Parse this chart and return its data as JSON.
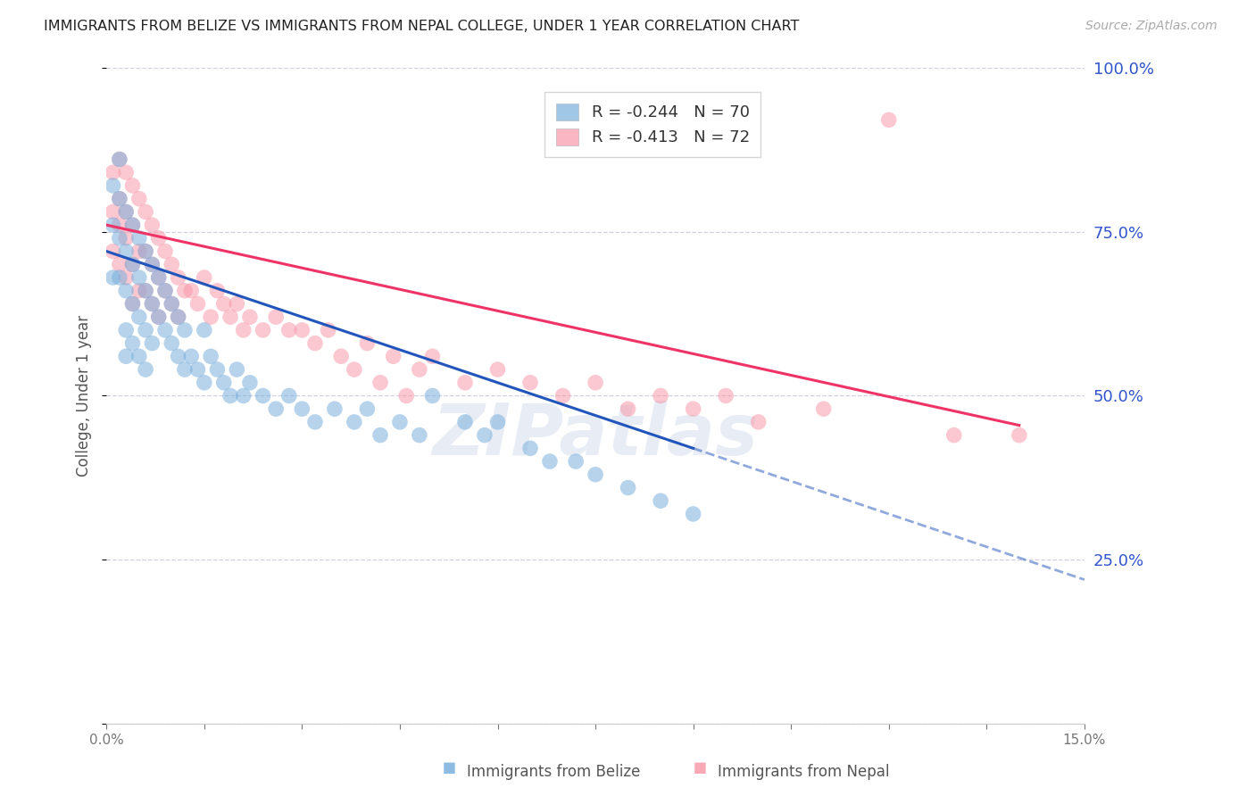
{
  "title": "IMMIGRANTS FROM BELIZE VS IMMIGRANTS FROM NEPAL COLLEGE, UNDER 1 YEAR CORRELATION CHART",
  "source": "Source: ZipAtlas.com",
  "ylabel": "College, Under 1 year",
  "x_min": 0.0,
  "x_max": 0.15,
  "y_min": 0.0,
  "y_max": 1.0,
  "y_ticks": [
    0.0,
    0.25,
    0.5,
    0.75,
    1.0
  ],
  "y_tick_labels_right": [
    "",
    "25.0%",
    "50.0%",
    "75.0%",
    "100.0%"
  ],
  "belize_R": -0.244,
  "belize_N": 70,
  "nepal_R": -0.413,
  "nepal_N": 72,
  "belize_color": "#7ab0dc",
  "nepal_color": "#f899aa",
  "belize_line_color": "#2255bb",
  "nepal_line_color": "#ee3366",
  "legend_label_belize": "Immigrants from Belize",
  "legend_label_nepal": "Immigrants from Nepal",
  "watermark": "ZIPatlas",
  "background_color": "#ffffff",
  "grid_color": "#ccccdd",
  "title_color": "#222222",
  "right_axis_label_color": "#3355cc",
  "belize_x": [
    0.001,
    0.001,
    0.001,
    0.002,
    0.002,
    0.002,
    0.002,
    0.003,
    0.003,
    0.003,
    0.003,
    0.003,
    0.004,
    0.004,
    0.004,
    0.004,
    0.005,
    0.005,
    0.005,
    0.005,
    0.006,
    0.006,
    0.006,
    0.006,
    0.007,
    0.007,
    0.007,
    0.008,
    0.008,
    0.009,
    0.009,
    0.01,
    0.01,
    0.011,
    0.011,
    0.012,
    0.012,
    0.013,
    0.014,
    0.015,
    0.015,
    0.016,
    0.017,
    0.018,
    0.019,
    0.02,
    0.021,
    0.022,
    0.024,
    0.026,
    0.028,
    0.03,
    0.032,
    0.035,
    0.038,
    0.04,
    0.042,
    0.045,
    0.048,
    0.05,
    0.055,
    0.058,
    0.06,
    0.065,
    0.068,
    0.072,
    0.075,
    0.08,
    0.085,
    0.09
  ],
  "belize_y": [
    0.82,
    0.76,
    0.68,
    0.86,
    0.8,
    0.74,
    0.68,
    0.78,
    0.72,
    0.66,
    0.6,
    0.56,
    0.76,
    0.7,
    0.64,
    0.58,
    0.74,
    0.68,
    0.62,
    0.56,
    0.72,
    0.66,
    0.6,
    0.54,
    0.7,
    0.64,
    0.58,
    0.68,
    0.62,
    0.66,
    0.6,
    0.64,
    0.58,
    0.62,
    0.56,
    0.6,
    0.54,
    0.56,
    0.54,
    0.6,
    0.52,
    0.56,
    0.54,
    0.52,
    0.5,
    0.54,
    0.5,
    0.52,
    0.5,
    0.48,
    0.5,
    0.48,
    0.46,
    0.48,
    0.46,
    0.48,
    0.44,
    0.46,
    0.44,
    0.5,
    0.46,
    0.44,
    0.46,
    0.42,
    0.4,
    0.4,
    0.38,
    0.36,
    0.34,
    0.32
  ],
  "nepal_x": [
    0.001,
    0.001,
    0.001,
    0.002,
    0.002,
    0.002,
    0.002,
    0.003,
    0.003,
    0.003,
    0.003,
    0.004,
    0.004,
    0.004,
    0.004,
    0.005,
    0.005,
    0.005,
    0.006,
    0.006,
    0.006,
    0.007,
    0.007,
    0.007,
    0.008,
    0.008,
    0.008,
    0.009,
    0.009,
    0.01,
    0.01,
    0.011,
    0.011,
    0.012,
    0.013,
    0.014,
    0.015,
    0.016,
    0.017,
    0.018,
    0.019,
    0.02,
    0.021,
    0.022,
    0.024,
    0.026,
    0.028,
    0.03,
    0.032,
    0.034,
    0.036,
    0.038,
    0.04,
    0.042,
    0.044,
    0.046,
    0.048,
    0.05,
    0.055,
    0.06,
    0.065,
    0.07,
    0.075,
    0.08,
    0.085,
    0.09,
    0.095,
    0.1,
    0.11,
    0.12,
    0.13,
    0.14
  ],
  "nepal_y": [
    0.84,
    0.78,
    0.72,
    0.86,
    0.8,
    0.76,
    0.7,
    0.84,
    0.78,
    0.74,
    0.68,
    0.82,
    0.76,
    0.7,
    0.64,
    0.8,
    0.72,
    0.66,
    0.78,
    0.72,
    0.66,
    0.76,
    0.7,
    0.64,
    0.74,
    0.68,
    0.62,
    0.72,
    0.66,
    0.7,
    0.64,
    0.68,
    0.62,
    0.66,
    0.66,
    0.64,
    0.68,
    0.62,
    0.66,
    0.64,
    0.62,
    0.64,
    0.6,
    0.62,
    0.6,
    0.62,
    0.6,
    0.6,
    0.58,
    0.6,
    0.56,
    0.54,
    0.58,
    0.52,
    0.56,
    0.5,
    0.54,
    0.56,
    0.52,
    0.54,
    0.52,
    0.5,
    0.52,
    0.48,
    0.5,
    0.48,
    0.5,
    0.46,
    0.48,
    0.92,
    0.44,
    0.44
  ],
  "belize_line_x0": 0.0,
  "belize_line_y0": 0.72,
  "belize_line_x1": 0.09,
  "belize_line_y1": 0.42,
  "nepal_line_x0": 0.0,
  "nepal_line_y0": 0.76,
  "nepal_line_x1": 0.14,
  "nepal_line_y1": 0.455
}
